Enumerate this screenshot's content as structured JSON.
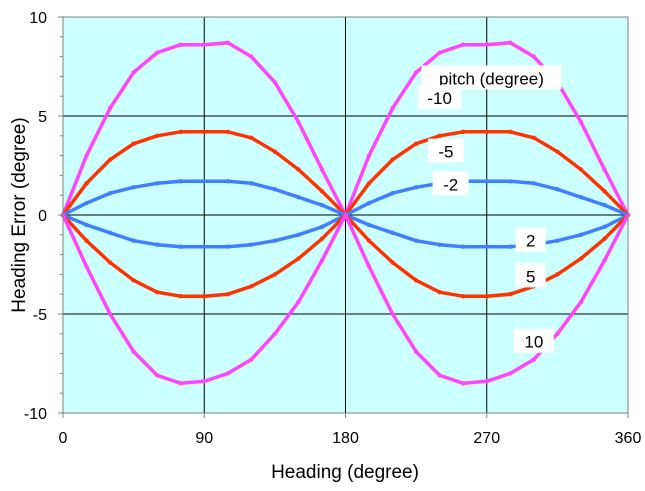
{
  "chart_data": {
    "type": "line",
    "title": "",
    "xlabel": "Heading (degree)",
    "ylabel": "Heading Error (degree)",
    "xlim": [
      0,
      360
    ],
    "ylim": [
      -10,
      10
    ],
    "xticks": [
      "0",
      "90",
      "180",
      "270",
      "360"
    ],
    "yticks": [
      "10",
      "5",
      "0",
      "-5",
      "-10"
    ],
    "grid": true,
    "legend_title": "pitch (degree)",
    "plot_background": "#ccffff",
    "x": [
      0,
      15,
      30,
      45,
      60,
      75,
      90,
      105,
      120,
      135,
      150,
      165,
      180,
      195,
      210,
      225,
      240,
      255,
      270,
      285,
      300,
      315,
      330,
      345,
      360
    ],
    "series": [
      {
        "name": "-10",
        "color": "#ff44ff",
        "values": [
          0,
          3.0,
          5.4,
          7.2,
          8.2,
          8.6,
          8.6,
          8.7,
          8.0,
          6.7,
          4.7,
          2.3,
          0,
          3.0,
          5.4,
          7.2,
          8.2,
          8.6,
          8.6,
          8.7,
          8.0,
          6.7,
          4.7,
          2.3,
          0
        ]
      },
      {
        "name": "-5",
        "color": "#ff3300",
        "values": [
          0,
          1.6,
          2.8,
          3.6,
          4.0,
          4.2,
          4.2,
          4.2,
          3.9,
          3.2,
          2.3,
          1.2,
          0,
          1.6,
          2.8,
          3.6,
          4.0,
          4.2,
          4.2,
          4.2,
          3.9,
          3.2,
          2.3,
          1.2,
          0
        ]
      },
      {
        "name": "-2",
        "color": "#3f7fff",
        "values": [
          0,
          0.6,
          1.1,
          1.4,
          1.6,
          1.7,
          1.7,
          1.7,
          1.6,
          1.3,
          0.9,
          0.5,
          0,
          0.6,
          1.1,
          1.4,
          1.6,
          1.7,
          1.7,
          1.7,
          1.6,
          1.3,
          0.9,
          0.5,
          0
        ]
      },
      {
        "name": "2",
        "color": "#3f7fff",
        "values": [
          0,
          -0.5,
          -0.9,
          -1.3,
          -1.5,
          -1.6,
          -1.6,
          -1.6,
          -1.5,
          -1.3,
          -1.0,
          -0.6,
          0,
          -0.5,
          -0.9,
          -1.3,
          -1.5,
          -1.6,
          -1.6,
          -1.6,
          -1.5,
          -1.3,
          -1.0,
          -0.6,
          0
        ]
      },
      {
        "name": "5",
        "color": "#ff3300",
        "values": [
          0,
          -1.3,
          -2.4,
          -3.3,
          -3.9,
          -4.1,
          -4.1,
          -4.0,
          -3.6,
          -3.0,
          -2.2,
          -1.2,
          0,
          -1.3,
          -2.4,
          -3.3,
          -3.9,
          -4.1,
          -4.1,
          -4.0,
          -3.6,
          -3.0,
          -2.2,
          -1.2,
          0
        ]
      },
      {
        "name": "10",
        "color": "#ff44ff",
        "values": [
          0,
          -2.6,
          -5.0,
          -6.9,
          -8.1,
          -8.5,
          -8.4,
          -8.0,
          -7.3,
          -6.0,
          -4.4,
          -2.3,
          0,
          -2.6,
          -5.0,
          -6.9,
          -8.1,
          -8.5,
          -8.4,
          -8.0,
          -7.3,
          -6.0,
          -4.4,
          -2.3,
          0
        ]
      }
    ],
    "annotations": [
      "pitch (degree)",
      "-10",
      "-5",
      "-2",
      "2",
      "5",
      "10"
    ]
  }
}
